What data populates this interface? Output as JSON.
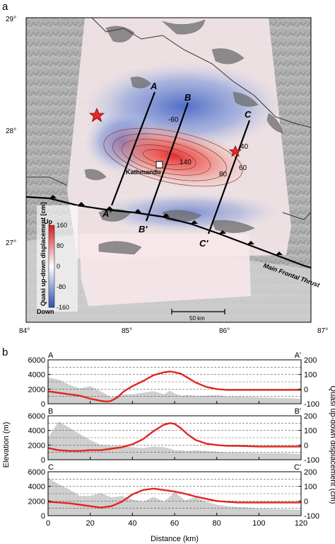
{
  "panel_a": {
    "panel_label": "a",
    "lat_ticks": [
      "29°",
      "28°",
      "27°"
    ],
    "lon_ticks": [
      "84°",
      "85°",
      "86°",
      "87°"
    ],
    "colorbar": {
      "title": "Quasi up-down displacement [cm]",
      "up_label": "Up",
      "down_label": "Down",
      "ticks": [
        "160",
        "80",
        "0",
        "-80",
        "-160"
      ],
      "colors": {
        "up": "#d7191c",
        "zero": "#ffffff",
        "down": "#2c4fb0"
      }
    },
    "profile_labels": {
      "A": "A",
      "A_prime": "A'",
      "B": "B",
      "B_prime": "B'",
      "C": "C",
      "C_prime": "C'"
    },
    "contour_labels": [
      "-60",
      "140",
      "80",
      "60",
      "40"
    ],
    "city_label": "Kathmandu",
    "fault_label": "Main Frontal Thrust",
    "scale_bar_label": "50 km",
    "epicenter_color": "#e8272a"
  },
  "panel_b": {
    "panel_label": "b",
    "y_left_label": "Elevation (m)",
    "y_right_label": "Quasi up-down displacement (cm)",
    "x_label": "Distance (km)",
    "x_ticks": [
      "0",
      "20",
      "40",
      "60",
      "80",
      "100",
      "120"
    ],
    "y_left_ticks": [
      "6000",
      "4000",
      "2000",
      "0"
    ],
    "y_right_ticks": [
      "200",
      "100",
      "0",
      "-100"
    ]
  },
  "chart_data": [
    {
      "type": "line",
      "profile": "A",
      "start_label": "A",
      "end_label": "A'",
      "x": [
        0,
        5,
        10,
        15,
        20,
        25,
        28,
        30,
        33,
        36,
        40,
        45,
        50,
        55,
        58,
        60,
        63,
        66,
        70,
        75,
        80,
        85,
        90,
        100,
        110,
        120
      ],
      "series": [
        {
          "values": [
            1700,
            1500,
            1300,
            1100,
            700,
            400,
            300,
            400,
            900,
            1700,
            2400,
            3100,
            3900,
            4300,
            4400,
            4300,
            4100,
            3600,
            2900,
            2300,
            2000,
            1900,
            1900,
            1900,
            1900,
            1900
          ]
        },
        {
          "values": [
            3600,
            3300,
            2600,
            2100,
            2400,
            1700,
            1200,
            900,
            1100,
            1300,
            1300,
            1500,
            1700,
            1300,
            1800,
            1400,
            1100,
            1200,
            1100,
            1100,
            1200,
            1000,
            1000,
            900,
            800,
            700
          ]
        }
      ],
      "xlim": [
        0,
        120
      ],
      "ylim_left": [
        0,
        6000
      ],
      "ylim_right": [
        -100,
        200
      ]
    },
    {
      "type": "line",
      "profile": "B",
      "start_label": "B",
      "end_label": "B'",
      "x": [
        0,
        5,
        10,
        15,
        20,
        25,
        30,
        35,
        40,
        45,
        50,
        55,
        58,
        60,
        63,
        66,
        70,
        75,
        80,
        85,
        90,
        100,
        110,
        120
      ],
      "series": [
        {
          "values": [
            1600,
            1300,
            1200,
            1200,
            1300,
            1300,
            1500,
            1700,
            2100,
            2800,
            3900,
            4800,
            5000,
            4900,
            4300,
            3500,
            2700,
            2200,
            2000,
            1900,
            1900,
            1800,
            1800,
            1800
          ]
        },
        {
          "values": [
            3000,
            5200,
            4400,
            3500,
            2700,
            2000,
            1900,
            1900,
            1700,
            1600,
            1800,
            1700,
            1500,
            1300,
            1300,
            1200,
            1300,
            1200,
            1100,
            1000,
            1000,
            900,
            900,
            800
          ]
        }
      ],
      "xlim": [
        0,
        120
      ],
      "ylim_left": [
        0,
        6000
      ],
      "ylim_right": [
        -100,
        200
      ]
    },
    {
      "type": "line",
      "profile": "C",
      "start_label": "C",
      "end_label": "C'",
      "x": [
        0,
        5,
        10,
        15,
        20,
        25,
        30,
        35,
        40,
        45,
        50,
        55,
        60,
        65,
        70,
        75,
        80,
        85,
        90,
        100,
        110,
        120
      ],
      "series": [
        {
          "values": [
            1900,
            1800,
            1700,
            1500,
            1300,
            1100,
            1300,
            1900,
            2900,
            3500,
            3700,
            3500,
            3300,
            3000,
            2600,
            2300,
            2000,
            1900,
            1800,
            1800,
            1800,
            1800
          ]
        },
        {
          "values": [
            5200,
            4300,
            3600,
            2700,
            2700,
            3100,
            2500,
            2700,
            2200,
            1900,
            2600,
            1900,
            3200,
            2100,
            2500,
            1900,
            1500,
            1300,
            1200,
            1000,
            900,
            800
          ]
        }
      ],
      "xlim": [
        0,
        120
      ],
      "ylim_left": [
        0,
        6000
      ],
      "ylim_right": [
        -100,
        200
      ]
    }
  ]
}
